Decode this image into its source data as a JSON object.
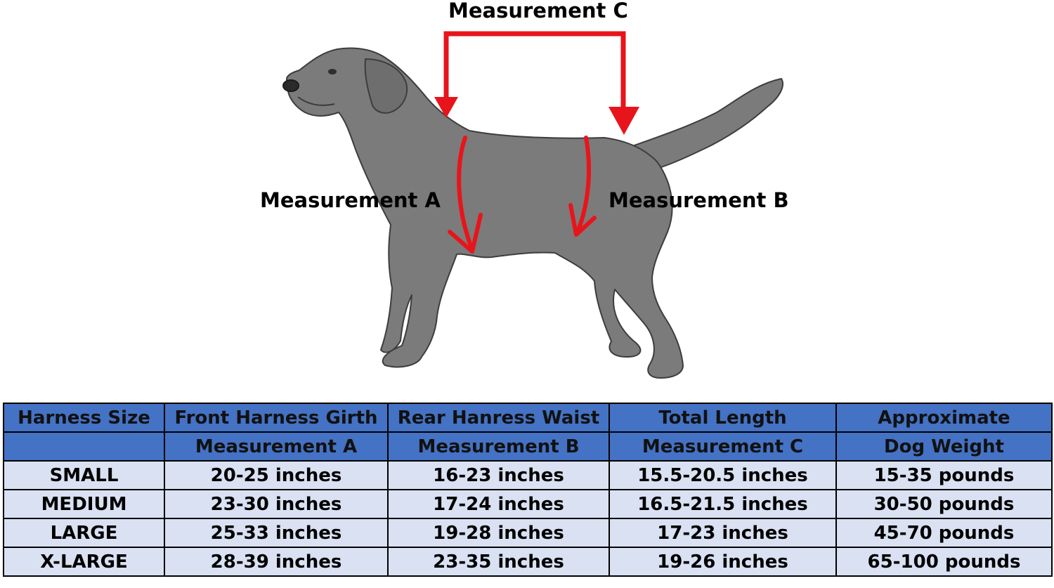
{
  "diagram": {
    "labels": {
      "measurement_c": "Measurement C",
      "measurement_a": "Measurement A",
      "measurement_b": "Measurement B"
    },
    "colors": {
      "dog_fill": "#7b7b7b",
      "dog_outline": "#3d3d3d",
      "marker": "#e8141b"
    },
    "illustration": "dog-silhouette"
  },
  "table": {
    "header_row_1": [
      "Harness Size",
      "Front Harness Girth",
      "Rear Hanress Waist",
      "Total Length",
      "Approximate"
    ],
    "header_row_2": [
      "",
      "Measurement A",
      "Measurement B",
      "Measurement C",
      "Dog Weight"
    ],
    "rows": [
      [
        "SMALL",
        "20-25 inches",
        "16-23 inches",
        "15.5-20.5 inches",
        "15-35 pounds"
      ],
      [
        "MEDIUM",
        "23-30 inches",
        "17-24 inches",
        "16.5-21.5 inches",
        "30-50 pounds"
      ],
      [
        "LARGE",
        "25-33 inches",
        "19-28 inches",
        "17-23 inches",
        "45-70 pounds"
      ],
      [
        "X-LARGE",
        "28-39 inches",
        "23-35 inches",
        "19-26 inches",
        "65-100 pounds"
      ]
    ],
    "colors": {
      "header_bg": "#4472c4",
      "row_bg": "#d9e1f2",
      "border": "#000000"
    }
  }
}
